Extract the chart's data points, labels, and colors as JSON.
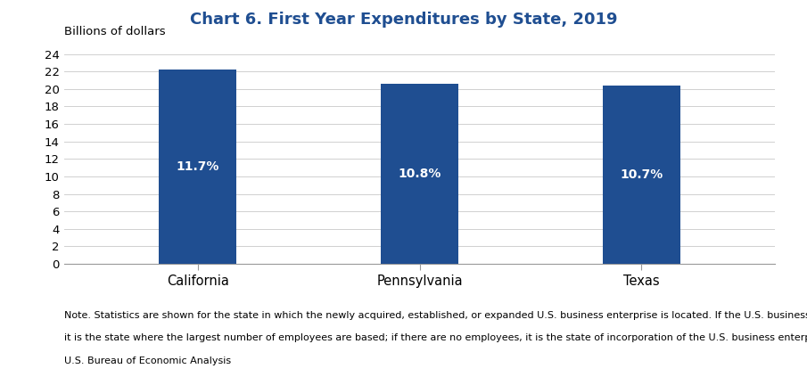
{
  "title": "Chart 6. First Year Expenditures by State, 2019",
  "title_color": "#1f4e91",
  "ylabel": "Billions of dollars",
  "categories": [
    "California",
    "Pennsylvania",
    "Texas"
  ],
  "values": [
    22.2,
    20.6,
    20.4
  ],
  "bar_labels": [
    "11.7%",
    "10.8%",
    "10.7%"
  ],
  "bar_color": "#1f4e91",
  "bar_label_color": "#ffffff",
  "bar_label_fontsize": 10,
  "ylim": [
    0,
    25
  ],
  "yticks": [
    0,
    2,
    4,
    6,
    8,
    10,
    12,
    14,
    16,
    18,
    20,
    22,
    24
  ],
  "grid_color": "#d0d0d0",
  "background_color": "#ffffff",
  "note_line1": "Note. Statistics are shown for the state in which the newly acquired, established, or expanded U.S. business enterprise is located. If the U.S. business enterprise operates in more than one state,",
  "note_line2": "it is the state where the largest number of employees are based; if there are no employees, it is the state of incorporation of the U.S. business enterprise.",
  "source_text": "U.S. Bureau of Economic Analysis",
  "note_fontsize": 8,
  "source_fontsize": 8,
  "bar_width": 0.35,
  "title_fontsize": 13,
  "ylabel_fontsize": 9.5,
  "xtick_fontsize": 10.5,
  "ytick_fontsize": 9.5
}
